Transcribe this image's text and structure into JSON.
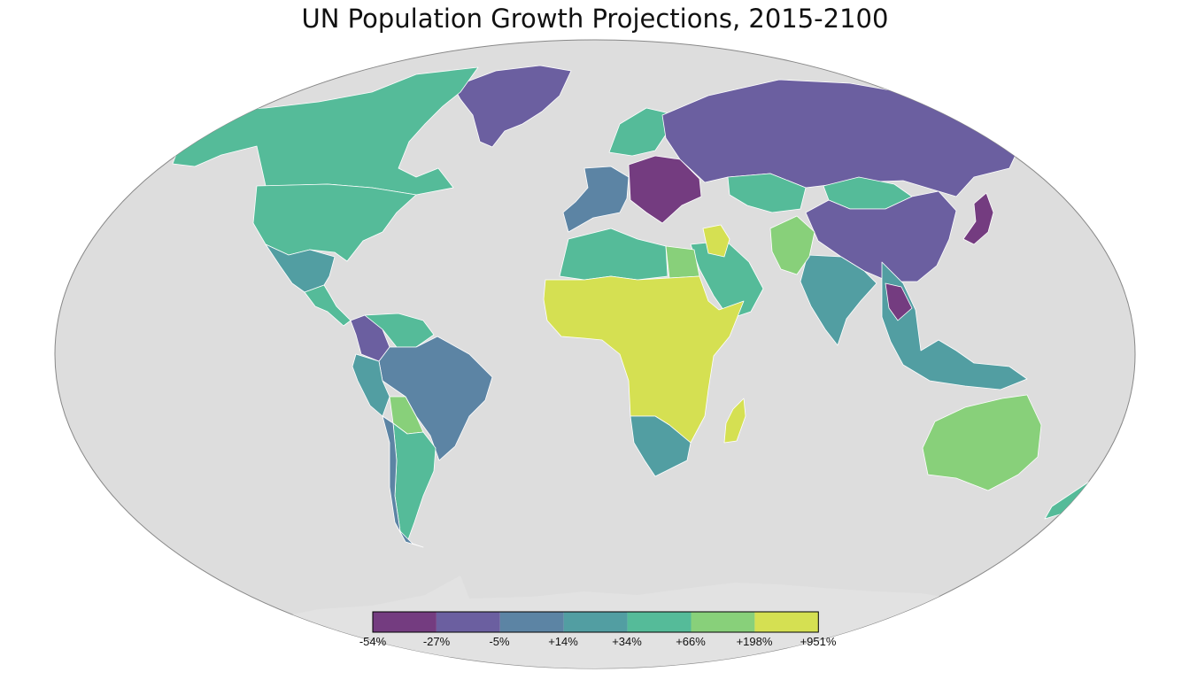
{
  "title": "UN Population Growth Projections, 2015-2100",
  "legend": {
    "labels": [
      "-54%",
      "-27%",
      "-5%",
      "+14%",
      "+34%",
      "+66%",
      "+198%",
      "+951%"
    ],
    "colors": [
      "#743c80",
      "#6b5fa0",
      "#5c84a4",
      "#529ea2",
      "#55bb99",
      "#88d07a",
      "#d5e052"
    ]
  },
  "colors": {
    "ocean": "#dddddd",
    "ocean_border": "#888888",
    "antarctica": "#e2e2e2"
  },
  "regions": [
    {
      "name": "Greenland",
      "class": "-27%"
    },
    {
      "name": "Canada",
      "class": "+34%"
    },
    {
      "name": "United States",
      "class": "+34%"
    },
    {
      "name": "Mexico",
      "class": "+14%"
    },
    {
      "name": "Central America",
      "class": "+34%"
    },
    {
      "name": "Colombia",
      "class": "-27%"
    },
    {
      "name": "Venezuela",
      "class": "+34%"
    },
    {
      "name": "Brazil",
      "class": "-5%"
    },
    {
      "name": "Peru",
      "class": "+14%"
    },
    {
      "name": "Bolivia",
      "class": "+66%"
    },
    {
      "name": "Argentina",
      "class": "+34%"
    },
    {
      "name": "Chile",
      "class": "-5%"
    },
    {
      "name": "Western Europe",
      "class": "-5%"
    },
    {
      "name": "Eastern Europe",
      "class": "-54%"
    },
    {
      "name": "Scandinavia",
      "class": "+34%"
    },
    {
      "name": "Russia",
      "class": "-27%"
    },
    {
      "name": "Kazakhstan",
      "class": "+34%"
    },
    {
      "name": "Mongolia",
      "class": "+34%"
    },
    {
      "name": "China",
      "class": "-27%"
    },
    {
      "name": "Japan",
      "class": "-54%"
    },
    {
      "name": "India",
      "class": "+14%"
    },
    {
      "name": "Pakistan",
      "class": "+66%"
    },
    {
      "name": "Middle East",
      "class": "+34%"
    },
    {
      "name": "Iraq",
      "class": "+951%"
    },
    {
      "name": "North Africa",
      "class": "+34%"
    },
    {
      "name": "Egypt",
      "class": "+66%"
    },
    {
      "name": "Sub-Saharan Africa",
      "class": "+951%"
    },
    {
      "name": "Southern Africa",
      "class": "+14%"
    },
    {
      "name": "Madagascar",
      "class": "+951%"
    },
    {
      "name": "Southeast Asia",
      "class": "+14%"
    },
    {
      "name": "Thailand",
      "class": "-54%"
    },
    {
      "name": "Australia",
      "class": "+66%"
    },
    {
      "name": "New Zealand",
      "class": "+34%"
    }
  ]
}
